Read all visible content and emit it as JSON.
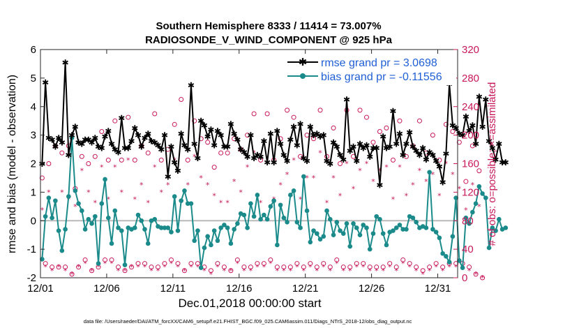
{
  "chart_data": {
    "type": "line",
    "title": "Southern Hemisphere 8333 / 11414 = 73.007%",
    "subtitle": "RADIOSONDE_V_WIND_COMPONENT @ 925 hPa",
    "xlabel": "Dec.01,2018 00:00:00 start",
    "ylabel": "rmse and bias (model - observation)",
    "ylabel_right": "# of obs: o=possible; ×=assimilated",
    "footer": "data file: /Users/raeder/DAI/ATM_forcXX/CAM6_setup/f.e21.FHIST_BGC.f09_025.CAM6assim.011/Diags_NTrS_2018-12/obs_diag_output.nc",
    "xlim": [
      0,
      31.5
    ],
    "ylim": [
      -2,
      6
    ],
    "ylim_right": [
      0,
      320
    ],
    "x_ticks": [
      0,
      5,
      10,
      15,
      20,
      25,
      30
    ],
    "x_tick_labels": [
      "12/01",
      "12/06",
      "12/11",
      "12/16",
      "12/21",
      "12/26",
      "12/31"
    ],
    "y_ticks": [
      -2,
      -1,
      0,
      1,
      2,
      3,
      4,
      5,
      6
    ],
    "y_tick_labels": [
      "-2",
      "-1",
      "0",
      "1",
      "2",
      "3",
      "4",
      "5",
      "6"
    ],
    "y_ticks_right": [
      0,
      40,
      80,
      120,
      160,
      200,
      240,
      280,
      320
    ],
    "y_tick_labels_right": [
      "0",
      "40",
      "80",
      "120",
      "160",
      "200",
      "240",
      "280",
      "320"
    ],
    "reference_line": 0,
    "series": [
      {
        "name": "rmse grand pr = 3.0698",
        "color": "#000000",
        "marker": "star",
        "values": [
          2.0,
          4.85,
          2.9,
          2.85,
          2.6,
          2.9,
          2.75,
          5.55,
          2.3,
          3.0,
          3.3,
          2.75,
          2.7,
          2.85,
          2.85,
          2.75,
          2.9,
          2.6,
          2.55,
          2.95,
          3.15,
          2.7,
          2.5,
          2.4,
          3.6,
          2.55,
          2.55,
          2.8,
          3.25,
          3.0,
          2.6,
          2.9,
          3.05,
          2.8,
          2.75,
          2.65,
          2.5,
          3.0,
          1.55,
          2.6,
          2.05,
          1.75,
          3.05,
          2.65,
          2.5,
          4.75,
          2.7,
          2.2,
          3.5,
          3.35,
          2.95,
          3.2,
          2.65,
          3.15,
          3.0,
          2.6,
          2.6,
          3.4,
          3.05,
          2.85,
          2.5,
          2.4,
          2.25,
          3.0,
          2.2,
          2.3,
          2.25,
          2.8,
          2.05,
          3.05,
          2.05,
          3.15,
          2.7,
          2.3,
          2.1,
          2.85,
          3.3,
          2.65,
          3.4,
          2.2,
          2.1,
          3.3,
          3.0,
          3.05,
          2.95,
          3.0,
          2.1,
          2.0,
          2.75,
          2.6,
          2.3,
          2.15,
          4.25,
          2.45,
          2.6,
          2.1,
          2.7,
          2.55,
          2.65,
          2.25,
          2.55,
          2.55,
          1.25,
          2.95,
          2.55,
          2.6,
          3.85,
          2.7,
          3.05,
          2.3,
          2.7,
          3.1,
          2.6,
          2.45,
          2.3,
          2.55,
          2.15,
          2.4,
          2.3,
          2.1,
          1.9,
          1.35,
          2.35,
          4.8,
          3.35,
          3.25,
          3.05,
          3.0,
          3.65,
          3.15,
          3.35,
          2.7,
          4.35,
          3.3,
          4.25,
          2.8,
          2.55,
          2.15,
          2.7,
          2.05,
          2.05
        ]
      },
      {
        "name": "bias grand pr = -0.11556",
        "color": "#1b8a8a",
        "marker": "circle",
        "values": [
          -1.35,
          0.15,
          0.8,
          0.1,
          0.7,
          -0.35,
          -1.05,
          -0.3,
          0.85,
          2.9,
          1.05,
          0.6,
          0.35,
          -0.3,
          0.05,
          -0.1,
          0.15,
          -1.5,
          0.6,
          1.45,
          0.1,
          -0.8,
          0.35,
          -0.25,
          -0.35,
          -1.55,
          -0.25,
          -0.3,
          -0.25,
          0.2,
          0.0,
          -0.3,
          -0.8,
          0.0,
          0.05,
          -0.2,
          -0.25,
          -0.25,
          -0.25,
          -0.4,
          0.85,
          -0.35,
          0.7,
          1.05,
          0.6,
          0.6,
          -0.7,
          -0.35,
          -1.65,
          -0.95,
          -0.55,
          -0.85,
          -0.35,
          -0.7,
          -0.25,
          -0.15,
          -0.25,
          -0.8,
          -0.3,
          -0.1,
          0.25,
          0.2,
          -0.25,
          0.6,
          0.15,
          0.9,
          0.05,
          0.2,
          0.05,
          0.5,
          0.7,
          -0.85,
          0.55,
          0.1,
          -0.05,
          0.9,
          1.05,
          -0.05,
          -0.25,
          1.55,
          0.35,
          -0.75,
          -0.35,
          -0.45,
          -0.65,
          -0.55,
          0.35,
          0.05,
          -0.5,
          -0.05,
          -0.35,
          -0.45,
          -0.1,
          -0.9,
          -0.1,
          -0.25,
          -0.5,
          -0.15,
          -0.25,
          -1.0,
          -0.45,
          0.15,
          0.05,
          -0.45,
          -0.85,
          -0.4,
          -0.35,
          -0.25,
          -0.15,
          -0.3,
          -0.3,
          0.15,
          0.1,
          -0.05,
          -0.25,
          -0.2,
          -0.25,
          1.7,
          -0.3,
          -0.4,
          -0.6,
          -1.15,
          -1.25,
          -1.45,
          -0.55,
          0.8,
          -1.4,
          -1.65,
          0.1,
          -0.1,
          0.3,
          0.6,
          1.2,
          0.95,
          0.8,
          -0.95,
          -0.25,
          -0.35,
          0.05,
          -0.3,
          -0.25
        ]
      },
      {
        "name": "# of obs possible",
        "axis": "right",
        "color": "#c8185a",
        "marker": "open-circle",
        "values": [
          140,
          20,
          160,
          15,
          185,
          15,
          175,
          15,
          185,
          5,
          125,
          15,
          170,
          25,
          160,
          10,
          170,
          15,
          205,
          25,
          165,
          25,
          220,
          15,
          165,
          10,
          225,
          15,
          165,
          20,
          185,
          20,
          175,
          15,
          230,
          15,
          165,
          20,
          180,
          25,
          215,
          20,
          250,
          10,
          165,
          20,
          220,
          20,
          195,
          15,
          190,
          10,
          155,
          20,
          175,
          15,
          175,
          10,
          195,
          25,
          180,
          15,
          200,
          15,
          230,
          20,
          165,
          20,
          230,
          25,
          165,
          15,
          195,
          15,
          235,
          15,
          225,
          20,
          170,
          15,
          200,
          20,
          195,
          15,
          235,
          20,
          170,
          15,
          210,
          25,
          160,
          15,
          235,
          15,
          170,
          20,
          235,
          20,
          225,
          15,
          190,
          15,
          205,
          15,
          210,
          20,
          165,
          15,
          220,
          25,
          170,
          20,
          185,
          15,
          220,
          10,
          175,
          15,
          200,
          20,
          165,
          15,
          215,
          20,
          205,
          20,
          190,
          20,
          135,
          15,
          185,
          5,
          150,
          0
        ]
      },
      {
        "name": "# of obs assimilated",
        "axis": "right",
        "color": "#c8185a",
        "marker": "asterisk",
        "values": [
          95,
          15,
          120,
          10,
          105,
          15,
          120,
          10,
          110,
          5,
          100,
          15,
          150,
          20,
          120,
          10,
          105,
          15,
          155,
          20,
          110,
          20,
          155,
          10,
          120,
          10,
          165,
          15,
          110,
          15,
          130,
          15,
          105,
          10,
          155,
          10,
          120,
          15,
          130,
          20,
          165,
          15,
          200,
          10,
          130,
          15,
          170,
          15,
          140,
          10,
          130,
          5,
          115,
          15,
          105,
          10,
          105,
          10,
          135,
          20,
          120,
          10,
          155,
          10,
          175,
          15,
          105,
          15,
          160,
          20,
          110,
          10,
          130,
          10,
          145,
          10,
          165,
          15,
          110,
          10,
          140,
          15,
          140,
          10,
          175,
          15,
          105,
          10,
          140,
          20,
          115,
          10,
          160,
          10,
          125,
          15,
          150,
          15,
          160,
          10,
          135,
          10,
          150,
          10,
          155,
          15,
          110,
          10,
          155,
          20,
          115,
          15,
          130,
          10,
          150,
          5,
          135,
          10,
          145,
          15,
          115,
          10,
          160,
          15,
          145,
          15,
          125,
          15,
          95,
          10,
          130,
          5,
          100,
          0
        ]
      }
    ]
  }
}
